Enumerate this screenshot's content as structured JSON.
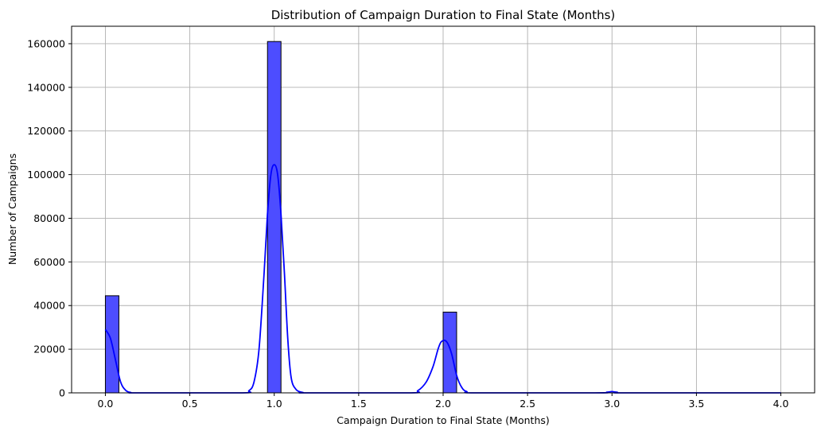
{
  "chart_data": {
    "type": "histogram",
    "title": "Distribution of Campaign Duration to Final State (Months)",
    "xlabel": "Campaign Duration to Final State (Months)",
    "ylabel": "Number of Campaigns",
    "xlim": [
      -0.2,
      4.2
    ],
    "ylim": [
      0,
      168000
    ],
    "xticks": [
      "0.0",
      "0.5",
      "1.0",
      "1.5",
      "2.0",
      "2.5",
      "3.0",
      "3.5",
      "4.0"
    ],
    "yticks": [
      "0",
      "20000",
      "40000",
      "60000",
      "80000",
      "100000",
      "120000",
      "140000",
      "160000"
    ],
    "grid": true,
    "colors": {
      "bar": "#4d4dff",
      "edge": "#000000",
      "kde": "#0000ff"
    },
    "bars": [
      {
        "x0": 0.0,
        "x1": 0.08,
        "value": 44500
      },
      {
        "x0": 0.96,
        "x1": 1.04,
        "value": 161000
      },
      {
        "x0": 2.0,
        "x1": 2.08,
        "value": 37000
      }
    ],
    "kde": [
      [
        0.0,
        29000
      ],
      [
        0.03,
        25000
      ],
      [
        0.06,
        15000
      ],
      [
        0.09,
        5000
      ],
      [
        0.12,
        1200
      ],
      [
        0.15,
        200
      ],
      [
        0.2,
        0
      ],
      [
        0.8,
        0
      ],
      [
        0.85,
        1000
      ],
      [
        0.88,
        5000
      ],
      [
        0.91,
        20000
      ],
      [
        0.94,
        55000
      ],
      [
        0.96,
        82000
      ],
      [
        0.98,
        100000
      ],
      [
        1.0,
        104500
      ],
      [
        1.02,
        100000
      ],
      [
        1.04,
        82000
      ],
      [
        1.06,
        55000
      ],
      [
        1.08,
        25000
      ],
      [
        1.1,
        7000
      ],
      [
        1.13,
        1500
      ],
      [
        1.17,
        200
      ],
      [
        1.2,
        0
      ],
      [
        1.8,
        0
      ],
      [
        1.85,
        1000
      ],
      [
        1.9,
        5000
      ],
      [
        1.94,
        12000
      ],
      [
        1.97,
        20000
      ],
      [
        1.99,
        23500
      ],
      [
        2.02,
        23500
      ],
      [
        2.05,
        18000
      ],
      [
        2.08,
        8000
      ],
      [
        2.11,
        2500
      ],
      [
        2.14,
        600
      ],
      [
        2.2,
        0
      ],
      [
        2.9,
        0
      ],
      [
        2.97,
        300
      ],
      [
        3.0,
        600
      ],
      [
        3.03,
        300
      ],
      [
        3.1,
        0
      ],
      [
        4.0,
        0
      ]
    ]
  }
}
